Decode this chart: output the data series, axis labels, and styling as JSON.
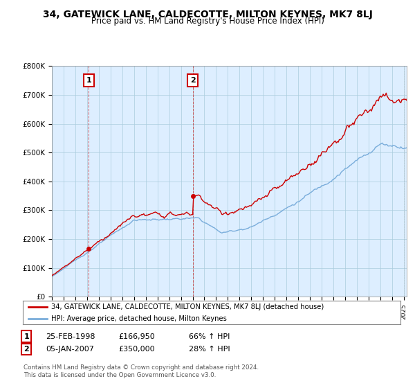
{
  "title": "34, GATEWICK LANE, CALDECOTTE, MILTON KEYNES, MK7 8LJ",
  "subtitle": "Price paid vs. HM Land Registry's House Price Index (HPI)",
  "ylim": [
    0,
    800000
  ],
  "yticks": [
    0,
    100000,
    200000,
    300000,
    400000,
    500000,
    600000,
    700000,
    800000
  ],
  "ytick_labels": [
    "£0",
    "£100K",
    "£200K",
    "£300K",
    "£400K",
    "£500K",
    "£600K",
    "£700K",
    "£800K"
  ],
  "sale1_year": 1998,
  "sale1_month": 2,
  "sale1_day": 25,
  "sale1_price": 166950,
  "sale2_year": 2007,
  "sale2_month": 1,
  "sale2_day": 5,
  "sale2_price": 350000,
  "hpi_line_color": "#7aaddb",
  "price_line_color": "#cc0000",
  "bg_color": "#ffffff",
  "chart_bg_color": "#ddeeff",
  "grid_color": "#aaccdd",
  "legend_label_red": "34, GATEWICK LANE, CALDECOTTE, MILTON KEYNES, MK7 8LJ (detached house)",
  "legend_label_blue": "HPI: Average price, detached house, Milton Keynes",
  "table_row1": [
    "1",
    "25-FEB-1998",
    "£166,950",
    "66% ↑ HPI"
  ],
  "table_row2": [
    "2",
    "05-JAN-2007",
    "£350,000",
    "28% ↑ HPI"
  ],
  "footnote": "Contains HM Land Registry data © Crown copyright and database right 2024.\nThis data is licensed under the Open Government Licence v3.0.",
  "title_fontsize": 10,
  "subtitle_fontsize": 8.5
}
